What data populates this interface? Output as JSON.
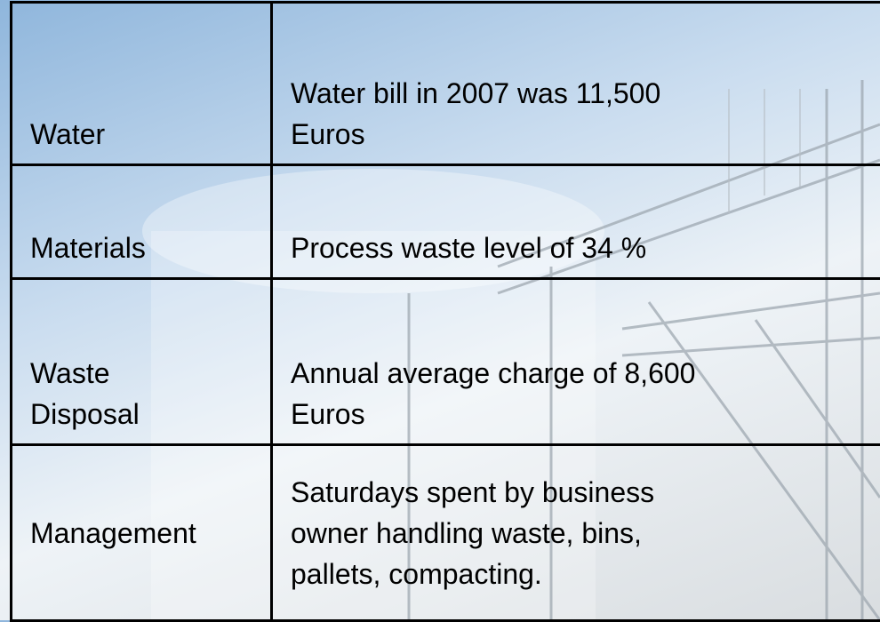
{
  "table": {
    "rows": [
      [
        [
          "Water"
        ],
        [
          "Water bill in 2007 was 11,500",
          "Euros"
        ]
      ],
      [
        [
          "Materials"
        ],
        [
          "Process waste level of 34 %"
        ]
      ],
      [
        [
          "Waste",
          "Disposal"
        ],
        [
          "Annual average charge of 8,600",
          "Euros"
        ]
      ],
      [
        [
          "Management"
        ],
        [
          "Saturdays spent by business",
          "owner handling waste, bins,",
          "pallets, compacting."
        ]
      ]
    ]
  }
}
